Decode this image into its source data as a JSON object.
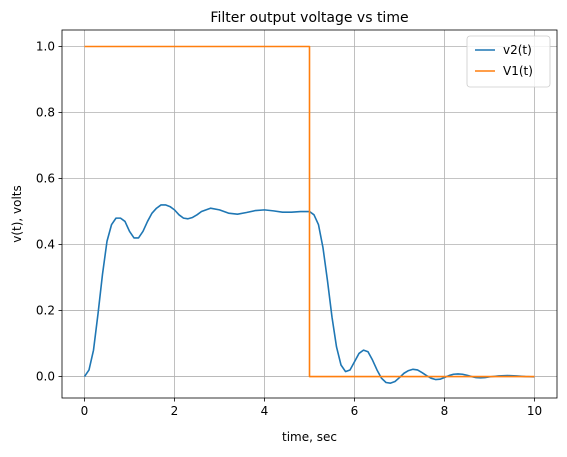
{
  "chart_data": {
    "type": "line",
    "title": "Filter output voltage vs time",
    "xlabel": "time, sec",
    "ylabel": "v(t), volts",
    "xlim": [
      -0.5,
      10.5
    ],
    "ylim": [
      -0.065,
      1.05
    ],
    "x_ticks": [
      0,
      2,
      4,
      6,
      8,
      10
    ],
    "x_tick_labels": [
      "0",
      "2",
      "4",
      "6",
      "8",
      "10"
    ],
    "y_ticks": [
      0.0,
      0.2,
      0.4,
      0.6,
      0.8,
      1.0
    ],
    "y_tick_labels": [
      "0.0",
      "0.2",
      "0.4",
      "0.6",
      "0.8",
      "1.0"
    ],
    "grid": true,
    "legend_position": "top-right",
    "series": [
      {
        "name": "v2(t)",
        "color": "#1f77b4",
        "x": [
          0,
          0.1,
          0.2,
          0.3,
          0.4,
          0.5,
          0.6,
          0.7,
          0.8,
          0.9,
          1.0,
          1.1,
          1.2,
          1.3,
          1.4,
          1.5,
          1.6,
          1.7,
          1.8,
          1.9,
          2.0,
          2.1,
          2.2,
          2.3,
          2.4,
          2.5,
          2.6,
          2.8,
          3.0,
          3.2,
          3.4,
          3.6,
          3.8,
          4.0,
          4.2,
          4.4,
          4.6,
          4.8,
          5.0,
          5.1,
          5.2,
          5.3,
          5.4,
          5.5,
          5.6,
          5.7,
          5.8,
          5.9,
          6.0,
          6.1,
          6.2,
          6.3,
          6.4,
          6.5,
          6.6,
          6.7,
          6.8,
          6.9,
          7.0,
          7.1,
          7.2,
          7.3,
          7.4,
          7.5,
          7.6,
          7.7,
          7.8,
          7.9,
          8.0,
          8.1,
          8.2,
          8.3,
          8.4,
          8.5,
          8.6,
          8.7,
          8.8,
          8.9,
          9.0,
          9.2,
          9.4,
          9.6,
          9.8,
          10.0
        ],
        "y": [
          0.0,
          0.02,
          0.08,
          0.19,
          0.31,
          0.41,
          0.46,
          0.48,
          0.48,
          0.47,
          0.44,
          0.42,
          0.42,
          0.44,
          0.47,
          0.495,
          0.51,
          0.52,
          0.52,
          0.515,
          0.505,
          0.49,
          0.48,
          0.478,
          0.482,
          0.49,
          0.5,
          0.51,
          0.505,
          0.495,
          0.492,
          0.497,
          0.503,
          0.505,
          0.502,
          0.498,
          0.498,
          0.5,
          0.5,
          0.49,
          0.46,
          0.39,
          0.29,
          0.18,
          0.09,
          0.035,
          0.015,
          0.02,
          0.045,
          0.07,
          0.08,
          0.075,
          0.05,
          0.02,
          -0.005,
          -0.018,
          -0.02,
          -0.015,
          -0.003,
          0.01,
          0.018,
          0.022,
          0.02,
          0.012,
          0.003,
          -0.005,
          -0.009,
          -0.008,
          -0.003,
          0.003,
          0.007,
          0.008,
          0.007,
          0.004,
          0.0,
          -0.003,
          -0.004,
          -0.003,
          -0.001,
          0.002,
          0.003,
          0.002,
          0.0,
          -0.001
        ]
      },
      {
        "name": "V1(t)",
        "color": "#ff7f0e",
        "x": [
          0,
          5,
          5,
          10
        ],
        "y": [
          1.0,
          1.0,
          0.0,
          0.0
        ]
      }
    ]
  }
}
